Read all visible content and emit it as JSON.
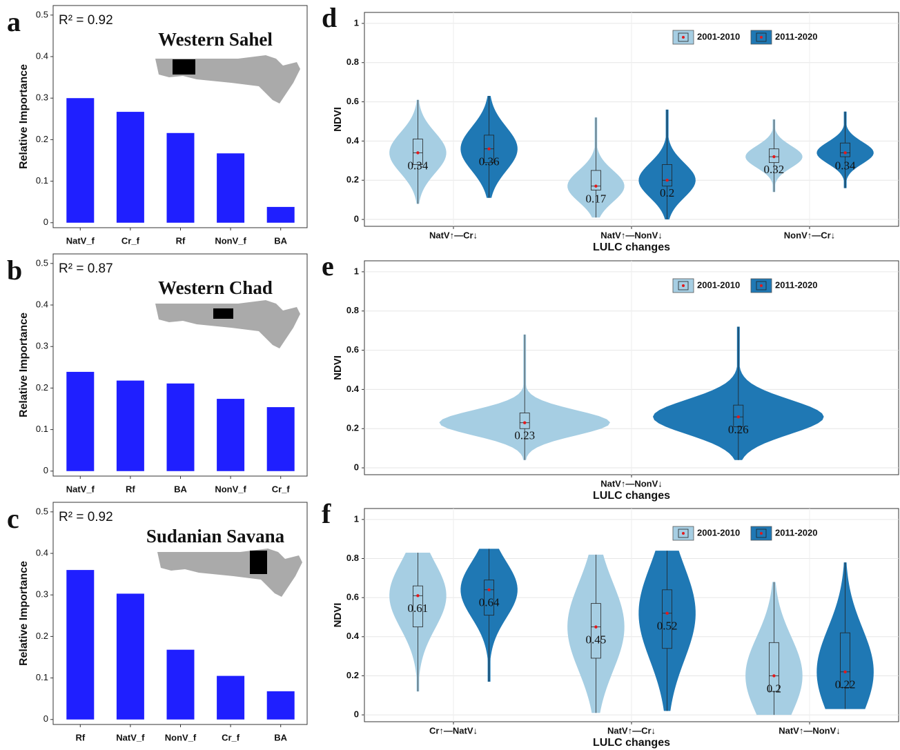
{
  "chart_data": [
    {
      "type": "bar",
      "panel": "a",
      "title": "Western Sahel",
      "annotation": "R² = 0.92",
      "y_label": "Relative Importance",
      "categories": [
        "NatV_f",
        "Cr_f",
        "Rf",
        "NonV_f",
        "BA"
      ],
      "values": [
        0.3,
        0.267,
        0.216,
        0.167,
        0.038
      ],
      "color": "#1f1fff",
      "ylim": [
        -0.012,
        0.523
      ],
      "yticks": [
        0,
        0.1,
        0.2,
        0.3,
        0.4,
        0.5
      ]
    },
    {
      "type": "bar",
      "panel": "b",
      "title": "Western Chad",
      "annotation": "R² = 0.87",
      "y_label": "Relative Importance",
      "categories": [
        "NatV_f",
        "Rf",
        "BA",
        "NonV_f",
        "Cr_f"
      ],
      "values": [
        0.239,
        0.218,
        0.211,
        0.174,
        0.154
      ],
      "color": "#1f1fff",
      "ylim": [
        -0.012,
        0.523
      ],
      "yticks": [
        0,
        0.1,
        0.2,
        0.3,
        0.4,
        0.5
      ]
    },
    {
      "type": "bar",
      "panel": "c",
      "title": "Sudanian Savana",
      "annotation": "R² = 0.92",
      "y_label": "Relative Importance",
      "categories": [
        "Rf",
        "NatV_f",
        "NonV_f",
        "Cr_f",
        "BA"
      ],
      "values": [
        0.36,
        0.303,
        0.168,
        0.105,
        0.068
      ],
      "color": "#1f1fff",
      "ylim": [
        -0.012,
        0.523
      ],
      "yticks": [
        0,
        0.1,
        0.2,
        0.3,
        0.4,
        0.5
      ]
    },
    {
      "type": "violin",
      "panel": "d",
      "x_label": "LULC changes",
      "y_label": "NDVI",
      "categories": [
        "NatV↑—Cr↓",
        "NatV↑—NonV↓",
        "NonV↑—Cr↓"
      ],
      "series": [
        {
          "name": "2001-2010",
          "color": "#a6cee3",
          "values": [
            0.34,
            0.17,
            0.32
          ],
          "q1": [
            0.28,
            0.15,
            0.29
          ],
          "median": [
            0.34,
            0.17,
            0.32
          ],
          "q3": [
            0.41,
            0.25,
            0.36
          ],
          "lower": [
            0.08,
            0.01,
            0.14
          ],
          "upper": [
            0.61,
            0.52,
            0.51
          ]
        },
        {
          "name": "2011-2020",
          "color": "#1f78b4",
          "values": [
            0.36,
            0.2,
            0.34
          ],
          "q1": [
            0.29,
            0.17,
            0.32
          ],
          "median": [
            0.36,
            0.2,
            0.34
          ],
          "q3": [
            0.43,
            0.28,
            0.39
          ],
          "lower": [
            0.11,
            0.0,
            0.16
          ],
          "upper": [
            0.63,
            0.56,
            0.55
          ]
        }
      ],
      "ylim": [
        -0.035,
        1.056
      ],
      "yticks": [
        0,
        0.2,
        0.4,
        0.6,
        0.8,
        1
      ],
      "grid": true
    },
    {
      "type": "violin",
      "panel": "e",
      "x_label": "LULC changes",
      "y_label": "NDVI",
      "categories": [
        "NatV↑—NonV↓"
      ],
      "series": [
        {
          "name": "2001-2010",
          "color": "#a6cee3",
          "values": [
            0.23
          ],
          "q1": [
            0.2
          ],
          "median": [
            0.23
          ],
          "q3": [
            0.28
          ],
          "lower": [
            0.04
          ],
          "upper": [
            0.68
          ]
        },
        {
          "name": "2011-2020",
          "color": "#1f78b4",
          "values": [
            0.26
          ],
          "q1": [
            0.21
          ],
          "median": [
            0.26
          ],
          "q3": [
            0.32
          ],
          "lower": [
            0.04
          ],
          "upper": [
            0.72
          ]
        }
      ],
      "ylim": [
        -0.035,
        1.056
      ],
      "yticks": [
        0,
        0.2,
        0.4,
        0.6,
        0.8,
        1
      ],
      "grid": true
    },
    {
      "type": "violin",
      "panel": "f",
      "x_label": "LULC changes",
      "y_label": "NDVI",
      "categories": [
        "Cr↑—NatV↓",
        "NatV↑—Cr↓",
        "NatV↑—NonV↓"
      ],
      "series": [
        {
          "name": "2001-2010",
          "color": "#a6cee3",
          "values": [
            0.61,
            0.45,
            0.2
          ],
          "q1": [
            0.45,
            0.29,
            0.12
          ],
          "median": [
            0.61,
            0.45,
            0.2
          ],
          "q3": [
            0.66,
            0.57,
            0.37
          ],
          "lower": [
            0.12,
            0.01,
            0.0
          ],
          "upper": [
            0.83,
            0.82,
            0.68
          ]
        },
        {
          "name": "2011-2020",
          "color": "#1f78b4",
          "values": [
            0.64,
            0.52,
            0.22
          ],
          "q1": [
            0.51,
            0.34,
            0.14
          ],
          "median": [
            0.64,
            0.52,
            0.22
          ],
          "q3": [
            0.69,
            0.64,
            0.42
          ],
          "lower": [
            0.17,
            0.02,
            0.03
          ],
          "upper": [
            0.85,
            0.84,
            0.78
          ]
        }
      ],
      "ylim": [
        -0.035,
        1.056
      ],
      "yticks": [
        0,
        0.2,
        0.4,
        0.6,
        0.8,
        1
      ],
      "grid": true
    }
  ]
}
